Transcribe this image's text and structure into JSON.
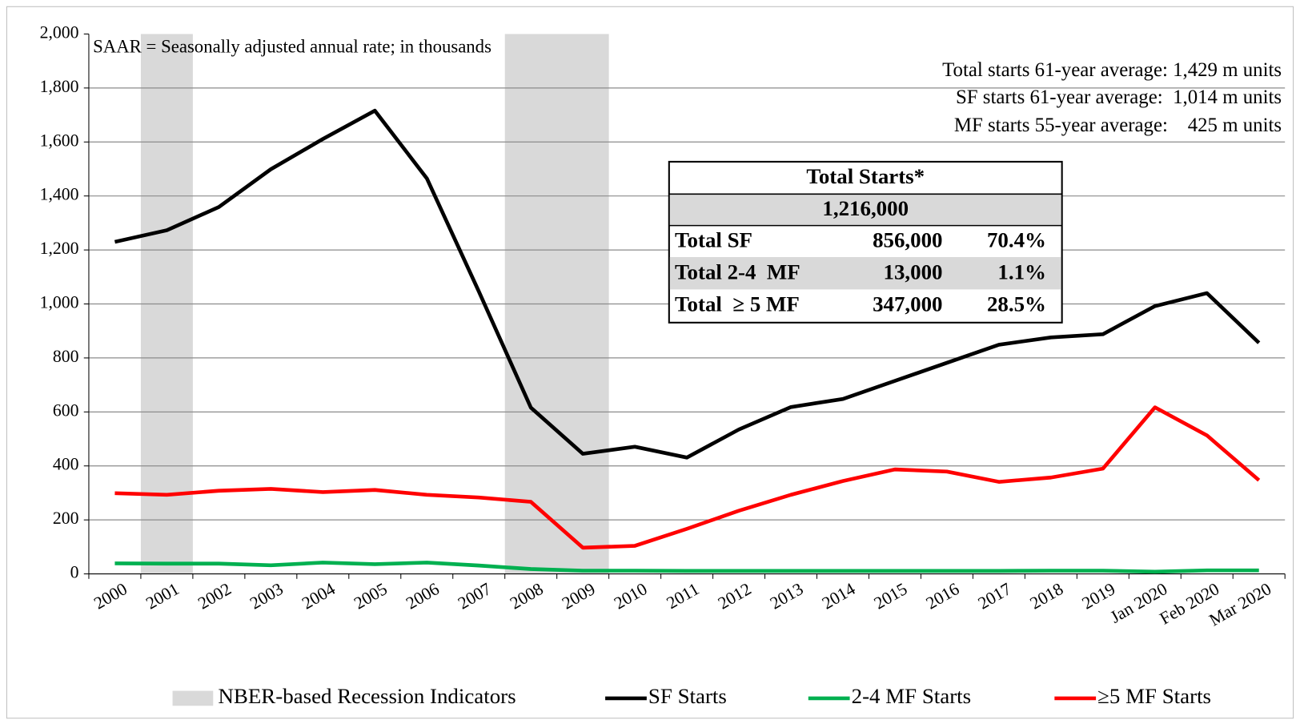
{
  "chart_data": {
    "type": "line",
    "categories": [
      "2000",
      "2001",
      "2002",
      "2003",
      "2004",
      "2005",
      "2006",
      "2007",
      "2008",
      "2009",
      "2010",
      "2011",
      "2012",
      "2013",
      "2014",
      "2015",
      "2016",
      "2017",
      "2018",
      "2019",
      "Jan 2020",
      "Feb 2020",
      "Mar 2020"
    ],
    "series": [
      {
        "name": "SF Starts",
        "color": "#000000",
        "values": [
          1230,
          1273,
          1359,
          1499,
          1611,
          1716,
          1465,
          1046,
          616,
          445,
          471,
          431,
          535,
          618,
          648,
          715,
          782,
          849,
          876,
          888,
          992,
          1040,
          856
        ]
      },
      {
        "name": "2-4 MF Starts",
        "color": "#00b050",
        "values": [
          39,
          38,
          38,
          32,
          42,
          36,
          42,
          31,
          18,
          12,
          12,
          11,
          11,
          11,
          11,
          11,
          11,
          11,
          12,
          12,
          8,
          13,
          13
        ]
      },
      {
        "name": "≥5 MF Starts",
        "color": "#ff0000",
        "values": [
          299,
          293,
          308,
          315,
          303,
          311,
          293,
          283,
          267,
          97,
          104,
          167,
          234,
          293,
          344,
          387,
          379,
          341,
          357,
          390,
          617,
          513,
          347
        ]
      }
    ],
    "recession": {
      "name": "NBER-based Recession Indicators",
      "color": "#d9d9d9",
      "periods": [
        [
          "2001",
          "2001"
        ],
        [
          "2008",
          "2009"
        ]
      ]
    },
    "ylim": [
      0,
      2000
    ],
    "yticks": [
      0,
      200,
      400,
      600,
      800,
      {
        "value": 1000,
        "label": "1,000"
      },
      {
        "value": 1200,
        "label": "1,200"
      },
      {
        "value": 1400,
        "label": "1,400"
      },
      {
        "value": 1600,
        "label": "1,600"
      },
      {
        "value": 1800,
        "label": "1,800"
      },
      {
        "value": 2000,
        "label": "2,000"
      }
    ],
    "grid": true,
    "annotations": [
      "SAAR = Seasonally adjusted annual rate; in thousands",
      "Total starts 61-year average: 1,429 m units",
      "SF starts 61-year average:  1,014 m units",
      "MF starts 55-year average:    425 m units"
    ],
    "table": {
      "title": "Total Starts*",
      "total": "1,216,000",
      "rows": [
        [
          "Total SF",
          "856,000",
          "70.4%"
        ],
        [
          "Total 2-4  MF",
          "13,000",
          "1.1%"
        ],
        [
          "Total  ≥ 5 MF",
          "347,000",
          "28.5%"
        ]
      ]
    }
  }
}
